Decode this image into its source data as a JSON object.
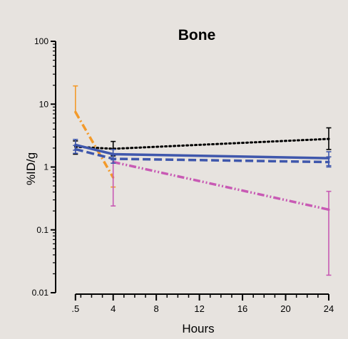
{
  "chart_data": {
    "type": "line",
    "title": "Bone",
    "xlabel": "Hours",
    "ylabel": "%ID/g",
    "x_tick_labels": [
      ".5",
      "4",
      "8",
      "12",
      "16",
      "20",
      "24"
    ],
    "x_tick_values": [
      0.5,
      4,
      8,
      12,
      16,
      20,
      24
    ],
    "xlim": [
      -2,
      24
    ],
    "y_scale": "log",
    "ylim": [
      0.01,
      100
    ],
    "y_tick_labels": [
      "0.01",
      "0.1",
      "1",
      "10",
      "100"
    ],
    "y_tick_values": [
      0.01,
      0.1,
      1,
      10,
      100
    ],
    "grid": false,
    "legend": "none",
    "series": [
      {
        "color": "#000000",
        "style": "dotted",
        "x": [
          0.5,
          4,
          24
        ],
        "values": [
          2.1,
          1.95,
          2.8
        ],
        "err_low": [
          1.6,
          1.5,
          1.9
        ],
        "err_high": [
          2.6,
          2.55,
          4.2
        ]
      },
      {
        "color": "#f39a2a",
        "style": "dash-dot",
        "x": [
          0.5,
          4
        ],
        "values": [
          7.5,
          0.68
        ],
        "err_low": [
          7.5,
          0.48
        ],
        "err_high": [
          19.5,
          0.68
        ]
      },
      {
        "color": "#c85ab4",
        "style": "dash-dot-dot",
        "x": [
          4,
          24
        ],
        "values": [
          1.2,
          0.21
        ],
        "err_low": [
          0.24,
          0.019
        ],
        "err_high": [
          1.2,
          0.41
        ]
      },
      {
        "color": "#3f57ac",
        "style": "solid",
        "x": [
          0.5,
          4,
          24
        ],
        "values": [
          2.25,
          1.6,
          1.38
        ],
        "err_low": [
          1.85,
          1.3,
          1.05
        ],
        "err_high": [
          2.75,
          1.9,
          1.75
        ]
      },
      {
        "color": "#3f57ac",
        "style": "dashed",
        "x": [
          0.5,
          4,
          24
        ],
        "values": [
          1.92,
          1.35,
          1.2
        ],
        "err_low": [
          1.65,
          1.15,
          1.0
        ],
        "err_high": [
          2.2,
          1.55,
          1.45
        ]
      }
    ]
  }
}
